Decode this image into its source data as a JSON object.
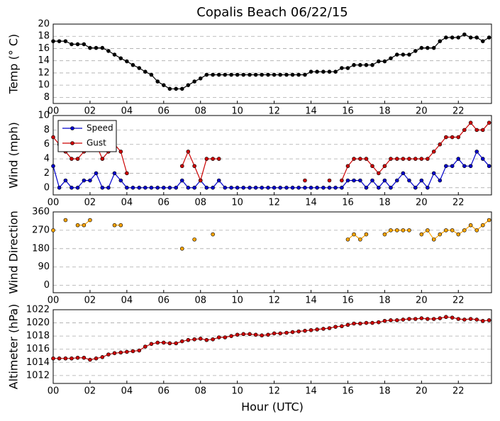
{
  "chart_data": [
    {
      "type": "line",
      "title": "Copalis Beach 06/22/15",
      "ylabel": "Temp (° C)",
      "color": "#000000",
      "grid": true,
      "xlim": [
        0,
        23.8
      ],
      "ylim": [
        7,
        20
      ],
      "yticks": [
        8,
        10,
        12,
        14,
        16,
        18,
        20
      ],
      "xticks": [
        {
          "value": 0,
          "label": "00"
        },
        {
          "value": 2,
          "label": "02"
        },
        {
          "value": 4,
          "label": "04"
        },
        {
          "value": 6,
          "label": "06"
        },
        {
          "value": 8,
          "label": "08"
        },
        {
          "value": 10,
          "label": "10"
        },
        {
          "value": 12,
          "label": "12"
        },
        {
          "value": 14,
          "label": "14"
        },
        {
          "value": 16,
          "label": "16"
        },
        {
          "value": 18,
          "label": "18"
        },
        {
          "value": 20,
          "label": "20"
        },
        {
          "value": 22,
          "label": "22"
        }
      ],
      "x": [
        0,
        0.33,
        0.67,
        1,
        1.33,
        1.67,
        2,
        2.33,
        2.67,
        3,
        3.33,
        3.67,
        4,
        4.33,
        4.67,
        5,
        5.33,
        5.67,
        6,
        6.33,
        6.67,
        7,
        7.33,
        7.67,
        8,
        8.33,
        8.67,
        9,
        9.33,
        9.67,
        10,
        10.33,
        10.67,
        11,
        11.33,
        11.67,
        12,
        12.33,
        12.67,
        13,
        13.33,
        13.67,
        14,
        14.33,
        14.67,
        15,
        15.33,
        15.67,
        16,
        16.33,
        16.67,
        17,
        17.33,
        17.67,
        18,
        18.33,
        18.67,
        19,
        19.33,
        19.67,
        20,
        20.33,
        20.67,
        21,
        21.33,
        21.67,
        22,
        22.33,
        22.67,
        23,
        23.33,
        23.67
      ],
      "values": [
        17.2,
        17.2,
        17.2,
        16.7,
        16.7,
        16.7,
        16.1,
        16.1,
        16.1,
        15.6,
        15,
        14.4,
        13.9,
        13.3,
        12.8,
        12.2,
        11.7,
        10.6,
        10,
        9.4,
        9.4,
        9.4,
        10,
        10.6,
        11.1,
        11.7,
        11.7,
        11.7,
        11.7,
        11.7,
        11.7,
        11.7,
        11.7,
        11.7,
        11.7,
        11.7,
        11.7,
        11.7,
        11.7,
        11.7,
        11.7,
        11.7,
        12.2,
        12.2,
        12.2,
        12.2,
        12.2,
        12.8,
        12.8,
        13.3,
        13.3,
        13.3,
        13.3,
        13.9,
        13.9,
        14.4,
        15,
        15,
        15,
        15.6,
        16.1,
        16.1,
        16.1,
        17.2,
        17.8,
        17.8,
        17.8,
        18.3,
        17.8,
        17.8,
        17.2,
        17.8
      ]
    },
    {
      "type": "line",
      "ylabel": "Wind (mph)",
      "grid": true,
      "legend": "upper left",
      "xlim": [
        0,
        23.8
      ],
      "ylim": [
        -1,
        10
      ],
      "yticks": [
        0,
        2,
        4,
        6,
        8,
        10
      ],
      "xticks": [
        {
          "value": 0,
          "label": "00"
        },
        {
          "value": 2,
          "label": "02"
        },
        {
          "value": 4,
          "label": "04"
        },
        {
          "value": 6,
          "label": "06"
        },
        {
          "value": 8,
          "label": "08"
        },
        {
          "value": 10,
          "label": "10"
        },
        {
          "value": 12,
          "label": "12"
        },
        {
          "value": 14,
          "label": "14"
        },
        {
          "value": 16,
          "label": "16"
        },
        {
          "value": 18,
          "label": "18"
        },
        {
          "value": 20,
          "label": "20"
        },
        {
          "value": 22,
          "label": "22"
        }
      ],
      "x": [
        0,
        0.33,
        0.67,
        1,
        1.33,
        1.67,
        2,
        2.33,
        2.67,
        3,
        3.33,
        3.67,
        4,
        4.33,
        4.67,
        5,
        5.33,
        5.67,
        6,
        6.33,
        6.67,
        7,
        7.33,
        7.67,
        8,
        8.33,
        8.67,
        9,
        9.33,
        9.67,
        10,
        10.33,
        10.67,
        11,
        11.33,
        11.67,
        12,
        12.33,
        12.67,
        13,
        13.33,
        13.67,
        14,
        14.33,
        14.67,
        15,
        15.33,
        15.67,
        16,
        16.33,
        16.67,
        17,
        17.33,
        17.67,
        18,
        18.33,
        18.67,
        19,
        19.33,
        19.67,
        20,
        20.33,
        20.67,
        21,
        21.33,
        21.67,
        22,
        22.33,
        22.67,
        23,
        23.33,
        23.67
      ],
      "series": [
        {
          "name": "Speed",
          "color": "#0000cc",
          "values": [
            3,
            0,
            1,
            0,
            0,
            1,
            1,
            2,
            0,
            0,
            2,
            1,
            0,
            0,
            0,
            0,
            0,
            0,
            0,
            0,
            0,
            1,
            0,
            0,
            1,
            0,
            0,
            1,
            0,
            0,
            0,
            0,
            0,
            0,
            0,
            0,
            0,
            0,
            0,
            0,
            0,
            0,
            0,
            0,
            0,
            0,
            0,
            0,
            1,
            1,
            1,
            0,
            1,
            0,
            1,
            0,
            1,
            2,
            1,
            0,
            1,
            0,
            2,
            1,
            3,
            3,
            4,
            3,
            3,
            5,
            4,
            3
          ]
        },
        {
          "name": "Gust",
          "color": "#cc0000",
          "values": [
            7,
            6,
            5,
            4,
            4,
            5,
            6,
            6,
            4,
            5,
            6,
            5,
            2,
            null,
            null,
            null,
            null,
            null,
            null,
            null,
            null,
            3,
            5,
            3,
            1,
            4,
            4,
            4,
            null,
            null,
            null,
            null,
            null,
            null,
            null,
            null,
            null,
            null,
            null,
            null,
            null,
            1,
            null,
            null,
            null,
            1,
            null,
            1,
            3,
            4,
            4,
            4,
            3,
            2,
            3,
            4,
            4,
            4,
            4,
            4,
            4,
            4,
            5,
            6,
            7,
            7,
            7,
            8,
            9,
            8,
            8,
            9
          ]
        }
      ]
    },
    {
      "type": "line",
      "ylabel": "Wind Direction",
      "color": "#ffa500",
      "grid": true,
      "xlim": [
        0,
        23.8
      ],
      "ylim": [
        -36,
        360
      ],
      "yticks": [
        0,
        90,
        180,
        270,
        360
      ],
      "xticks": [
        {
          "value": 0,
          "label": "00"
        },
        {
          "value": 2,
          "label": "02"
        },
        {
          "value": 4,
          "label": "04"
        },
        {
          "value": 6,
          "label": "06"
        },
        {
          "value": 8,
          "label": "08"
        },
        {
          "value": 10,
          "label": "10"
        },
        {
          "value": 12,
          "label": "12"
        },
        {
          "value": 14,
          "label": "14"
        },
        {
          "value": 16,
          "label": "16"
        },
        {
          "value": 18,
          "label": "18"
        },
        {
          "value": 20,
          "label": "20"
        },
        {
          "value": 22,
          "label": "22"
        }
      ],
      "x": [
        0,
        0.33,
        0.67,
        1,
        1.33,
        1.67,
        2,
        2.33,
        2.67,
        3,
        3.33,
        3.67,
        4,
        4.33,
        4.67,
        5,
        5.33,
        5.67,
        6,
        6.33,
        6.67,
        7,
        7.33,
        7.67,
        8,
        8.33,
        8.67,
        9,
        9.33,
        9.67,
        10,
        10.33,
        10.67,
        11,
        11.33,
        11.67,
        12,
        12.33,
        12.67,
        13,
        13.33,
        13.67,
        14,
        14.33,
        14.67,
        15,
        15.33,
        15.67,
        16,
        16.33,
        16.67,
        17,
        17.33,
        17.67,
        18,
        18.33,
        18.67,
        19,
        19.33,
        19.67,
        20,
        20.33,
        20.67,
        21,
        21.33,
        21.67,
        22,
        22.33,
        22.67,
        23,
        23.33,
        23.67
      ],
      "values": [
        270,
        null,
        320,
        null,
        295,
        295,
        320,
        null,
        null,
        null,
        295,
        295,
        null,
        null,
        null,
        null,
        null,
        null,
        null,
        null,
        null,
        180,
        null,
        225,
        null,
        null,
        250,
        null,
        null,
        null,
        null,
        null,
        null,
        null,
        null,
        null,
        null,
        null,
        null,
        null,
        null,
        null,
        null,
        null,
        null,
        null,
        null,
        null,
        225,
        250,
        225,
        250,
        null,
        null,
        250,
        270,
        270,
        270,
        270,
        null,
        250,
        270,
        225,
        250,
        270,
        270,
        250,
        270,
        295,
        270,
        295,
        320
      ]
    },
    {
      "type": "line",
      "ylabel": "Altimeter (hPa)",
      "xlabel": "Hour (UTC)",
      "color": "#cc0000",
      "grid": true,
      "xlim": [
        0,
        23.8
      ],
      "ylim": [
        1010.8,
        1022
      ],
      "yticks": [
        1012,
        1014,
        1016,
        1018,
        1020,
        1022
      ],
      "xticks": [
        {
          "value": 0,
          "label": "00"
        },
        {
          "value": 2,
          "label": "02"
        },
        {
          "value": 4,
          "label": "04"
        },
        {
          "value": 6,
          "label": "06"
        },
        {
          "value": 8,
          "label": "08"
        },
        {
          "value": 10,
          "label": "10"
        },
        {
          "value": 12,
          "label": "12"
        },
        {
          "value": 14,
          "label": "14"
        },
        {
          "value": 16,
          "label": "16"
        },
        {
          "value": 18,
          "label": "18"
        },
        {
          "value": 20,
          "label": "20"
        },
        {
          "value": 22,
          "label": "22"
        }
      ],
      "x": [
        0,
        0.33,
        0.67,
        1,
        1.33,
        1.67,
        2,
        2.33,
        2.67,
        3,
        3.33,
        3.67,
        4,
        4.33,
        4.67,
        5,
        5.33,
        5.67,
        6,
        6.33,
        6.67,
        7,
        7.33,
        7.67,
        8,
        8.33,
        8.67,
        9,
        9.33,
        9.67,
        10,
        10.33,
        10.67,
        11,
        11.33,
        11.67,
        12,
        12.33,
        12.67,
        13,
        13.33,
        13.67,
        14,
        14.33,
        14.67,
        15,
        15.33,
        15.67,
        16,
        16.33,
        16.67,
        17,
        17.33,
        17.67,
        18,
        18.33,
        18.67,
        19,
        19.33,
        19.67,
        20,
        20.33,
        20.67,
        21,
        21.33,
        21.67,
        22,
        22.33,
        22.67,
        23,
        23.33,
        23.67
      ],
      "values": [
        1014.6,
        1014.6,
        1014.6,
        1014.6,
        1014.7,
        1014.7,
        1014.4,
        1014.6,
        1014.8,
        1015.2,
        1015.4,
        1015.5,
        1015.6,
        1015.7,
        1015.8,
        1016.4,
        1016.8,
        1017,
        1017,
        1016.9,
        1016.9,
        1017.2,
        1017.4,
        1017.5,
        1017.6,
        1017.4,
        1017.5,
        1017.8,
        1017.8,
        1018,
        1018.2,
        1018.3,
        1018.3,
        1018.2,
        1018.1,
        1018.2,
        1018.4,
        1018.4,
        1018.5,
        1018.6,
        1018.7,
        1018.8,
        1018.9,
        1019,
        1019.1,
        1019.2,
        1019.4,
        1019.5,
        1019.7,
        1019.9,
        1019.9,
        1020,
        1020,
        1020.1,
        1020.3,
        1020.4,
        1020.4,
        1020.5,
        1020.6,
        1020.6,
        1020.7,
        1020.6,
        1020.6,
        1020.7,
        1020.9,
        1020.8,
        1020.6,
        1020.5,
        1020.6,
        1020.5,
        1020.3,
        1020.4
      ]
    }
  ]
}
